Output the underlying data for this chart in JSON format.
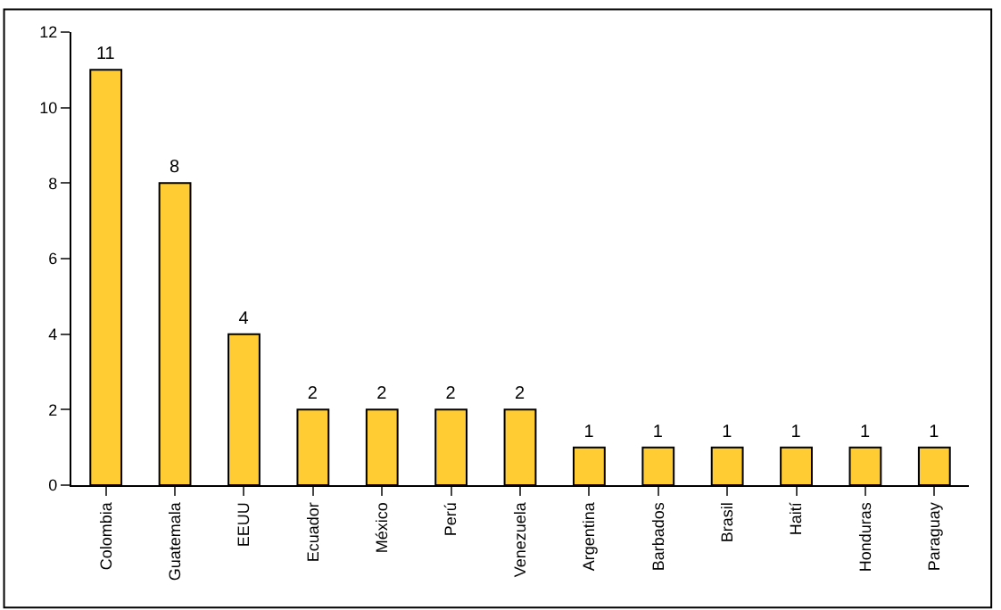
{
  "chart_data": {
    "type": "bar",
    "categories": [
      "Colombia",
      "Guatemala",
      "EEUU",
      "Ecuador",
      "México",
      "Perú",
      "Venezuela",
      "Argentina",
      "Barbados",
      "Brasil",
      "Haití",
      "Honduras",
      "Paraguay"
    ],
    "values": [
      11,
      8,
      4,
      2,
      2,
      2,
      2,
      1,
      1,
      1,
      1,
      1,
      1
    ],
    "color": "#ffcc33",
    "ylim": [
      0,
      12
    ],
    "yticks": [
      0,
      2,
      4,
      6,
      8,
      10,
      12
    ],
    "grid": false,
    "data_labels": true
  }
}
